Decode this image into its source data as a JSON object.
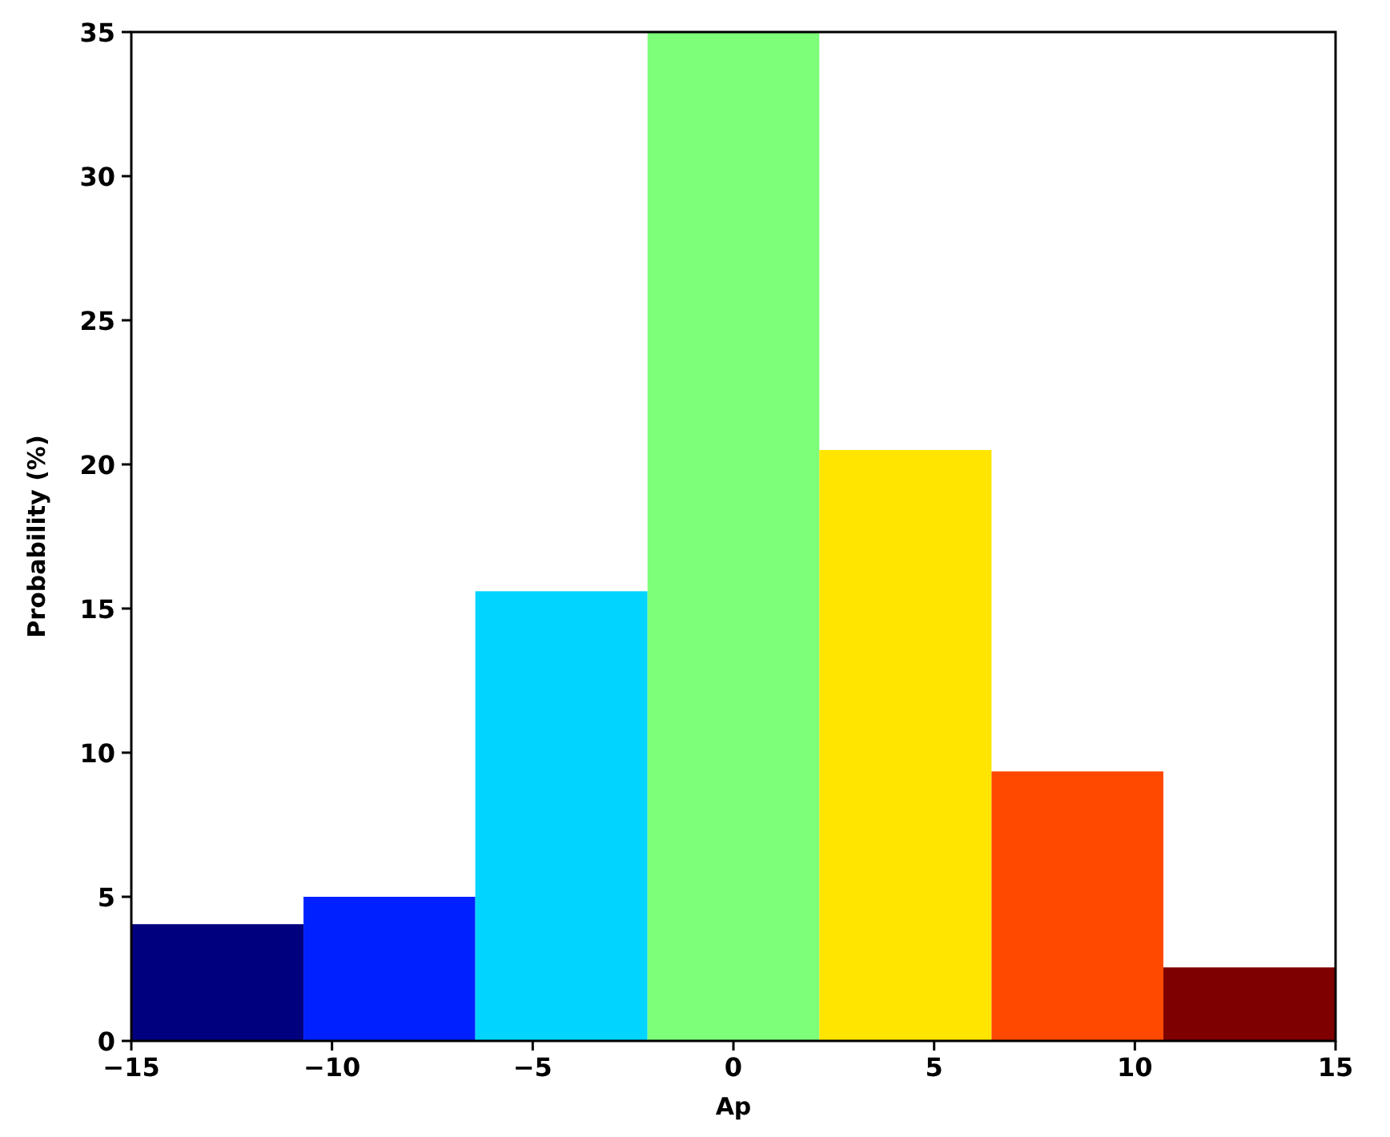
{
  "chart_data": {
    "type": "histogram",
    "xlabel": "Ap",
    "ylabel": "Probability (%)",
    "bins": [
      -15,
      -10.71,
      -6.43,
      -2.14,
      2.14,
      6.43,
      10.71,
      15
    ],
    "values": [
      4.05,
      5.0,
      15.6,
      35,
      20.5,
      9.35,
      2.55
    ],
    "colors": [
      "#00007f",
      "#0020ff",
      "#00d4ff",
      "#7dff7a",
      "#ffe500",
      "#ff4800",
      "#7f0000"
    ],
    "xlim": [
      -15,
      15
    ],
    "ylim": [
      0,
      35
    ],
    "xticks": [
      {
        "value": -15,
        "label": "−15"
      },
      {
        "value": -10,
        "label": "−10"
      },
      {
        "value": -5,
        "label": "−5"
      },
      0,
      5,
      10,
      15
    ],
    "yticks": [
      0,
      5,
      10,
      15,
      20,
      25,
      30,
      35
    ]
  }
}
